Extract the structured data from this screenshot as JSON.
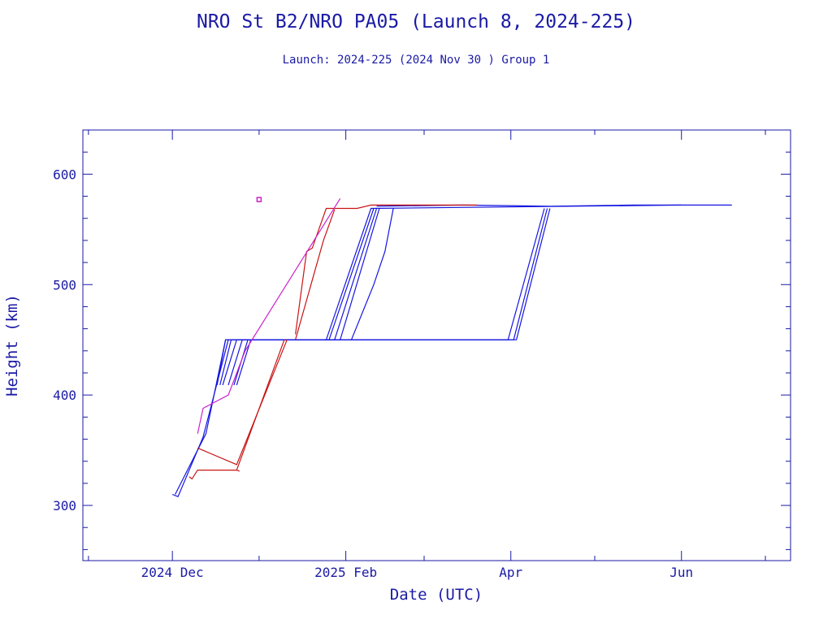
{
  "chart_data": {
    "type": "line",
    "title": "NRO St B2/NRO PA05 (Launch 8, 2024-225)",
    "subtitle": "Launch: 2024-225  (2024 Nov 30 )  Group 1",
    "xlabel": "Date (UTC)",
    "ylabel": "Height (km)",
    "xlim": [
      "2024-10-30",
      "2025-07-10"
    ],
    "ylim": [
      250,
      640
    ],
    "x_ticks": [
      {
        "date": "2024-12-01",
        "label": "2024 Dec"
      },
      {
        "date": "2025-02-01",
        "label": "2025 Feb"
      },
      {
        "date": "2025-04-01",
        "label": "Apr"
      },
      {
        "date": "2025-06-01",
        "label": "Jun"
      }
    ],
    "y_ticks": [
      300,
      400,
      500,
      600
    ],
    "grid": false,
    "colors": {
      "axis": "#1a1aa6",
      "blue_series": "#1515e0",
      "red_series": "#c81414",
      "magenta_series": "#cc22cc"
    },
    "series": [
      {
        "color": "blue",
        "points": [
          [
            "2024-12-01",
            310
          ],
          [
            "2024-12-03",
            308
          ],
          [
            "2024-12-12",
            362
          ],
          [
            "2024-12-21",
            450
          ]
        ]
      },
      {
        "color": "blue",
        "points": [
          [
            "2024-12-02",
            310
          ],
          [
            "2024-12-13",
            365
          ],
          [
            "2024-12-20",
            450
          ],
          [
            "2025-01-25",
            450
          ],
          [
            "2025-02-10",
            569
          ],
          [
            "2025-06-01",
            572
          ]
        ]
      },
      {
        "color": "blue",
        "points": [
          [
            "2024-12-17",
            409
          ],
          [
            "2024-12-20",
            450
          ],
          [
            "2025-01-26",
            450
          ],
          [
            "2025-02-11",
            569
          ]
        ]
      },
      {
        "color": "blue",
        "points": [
          [
            "2024-12-18",
            409
          ],
          [
            "2024-12-22",
            450
          ],
          [
            "2025-01-28",
            450
          ],
          [
            "2025-02-12",
            569
          ]
        ]
      },
      {
        "color": "blue",
        "points": [
          [
            "2024-12-19",
            409
          ],
          [
            "2024-12-24",
            450
          ],
          [
            "2025-01-30",
            450
          ],
          [
            "2025-02-13",
            569
          ]
        ]
      },
      {
        "color": "blue",
        "points": [
          [
            "2024-12-21",
            409
          ],
          [
            "2024-12-26",
            450
          ],
          [
            "2025-03-31",
            450
          ],
          [
            "2025-04-13",
            569
          ]
        ]
      },
      {
        "color": "blue",
        "points": [
          [
            "2024-12-23",
            409
          ],
          [
            "2024-12-28",
            450
          ],
          [
            "2025-04-02",
            450
          ],
          [
            "2025-04-14",
            569
          ]
        ]
      },
      {
        "color": "blue",
        "points": [
          [
            "2024-12-24",
            409
          ],
          [
            "2024-12-29",
            450
          ],
          [
            "2025-04-03",
            450
          ],
          [
            "2025-04-15",
            569
          ]
        ]
      },
      {
        "color": "blue",
        "points": [
          [
            "2025-02-03",
            450
          ],
          [
            "2025-02-11",
            500
          ],
          [
            "2025-02-15",
            530
          ],
          [
            "2025-02-18",
            569
          ]
        ]
      },
      {
        "color": "blue",
        "points": [
          [
            "2025-02-12",
            571
          ],
          [
            "2025-03-15",
            572
          ],
          [
            "2025-04-15",
            571
          ],
          [
            "2025-05-15",
            572
          ],
          [
            "2025-06-19",
            572
          ]
        ]
      },
      {
        "color": "red",
        "points": [
          [
            "2024-12-07",
            326
          ],
          [
            "2024-12-08",
            324
          ],
          [
            "2024-12-10",
            332
          ],
          [
            "2024-12-24",
            332
          ],
          [
            "2024-12-25",
            331
          ]
        ]
      },
      {
        "color": "red",
        "points": [
          [
            "2024-12-10",
            352
          ],
          [
            "2024-12-24",
            337
          ],
          [
            "2025-01-11",
            450
          ]
        ]
      },
      {
        "color": "red",
        "points": [
          [
            "2024-12-24",
            332
          ],
          [
            "2025-01-10",
            450
          ]
        ]
      },
      {
        "color": "red",
        "points": [
          [
            "2025-01-14",
            455
          ],
          [
            "2025-01-18",
            530
          ],
          [
            "2025-01-20",
            533
          ],
          [
            "2025-01-25",
            569
          ],
          [
            "2025-02-05",
            569
          ],
          [
            "2025-02-10",
            572
          ],
          [
            "2025-03-20",
            572
          ]
        ]
      },
      {
        "color": "red",
        "points": [
          [
            "2025-01-14",
            450
          ],
          [
            "2025-01-24",
            540
          ],
          [
            "2025-01-28",
            568
          ]
        ]
      },
      {
        "color": "magenta",
        "points": [
          [
            "2024-12-10",
            365
          ],
          [
            "2024-12-12",
            388
          ],
          [
            "2024-12-15",
            392
          ],
          [
            "2024-12-21",
            400
          ],
          [
            "2024-12-27",
            440
          ],
          [
            "2025-01-30",
            578
          ]
        ]
      },
      {
        "color": "magenta",
        "points": [
          [
            "2025-01-01",
            577
          ]
        ]
      }
    ]
  }
}
